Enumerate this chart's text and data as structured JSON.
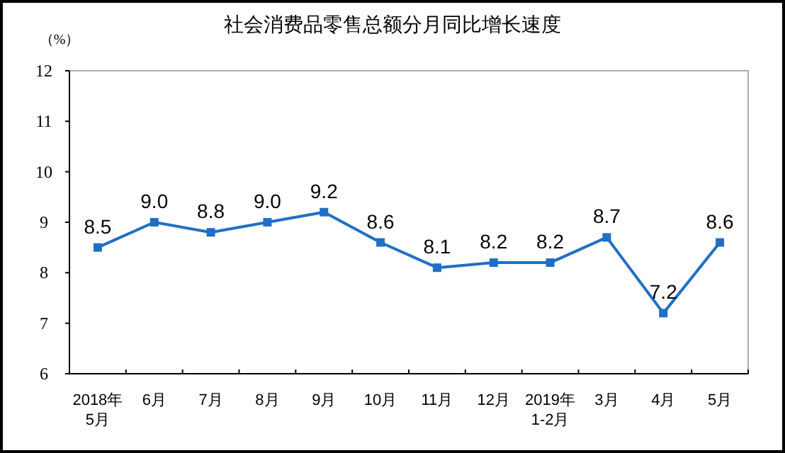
{
  "chart_data": {
    "type": "line",
    "title": "社会消费品零售总额分月同比增长速度",
    "ylabel": "（%）",
    "categories": [
      "2018年\n5月",
      "6月",
      "7月",
      "8月",
      "9月",
      "10月",
      "11月",
      "12月",
      "2019年\n1-2月",
      "3月",
      "4月",
      "5月"
    ],
    "series": [
      {
        "color": "#1f6fc5",
        "values": [
          8.5,
          9.0,
          8.8,
          9.0,
          9.2,
          8.6,
          8.1,
          8.2,
          8.2,
          8.7,
          7.2,
          8.6
        ],
        "value_labels": [
          "8.5",
          "9.0",
          "8.8",
          "9.0",
          "9.2",
          "8.6",
          "8.1",
          "8.2",
          "8.2",
          "8.7",
          "7.2",
          "8.6"
        ]
      }
    ],
    "ylim": [
      6,
      12
    ],
    "yticks": [
      6,
      7,
      8,
      9,
      10,
      11,
      12
    ],
    "grid": false,
    "marker": "square",
    "line_style": "solid"
  }
}
